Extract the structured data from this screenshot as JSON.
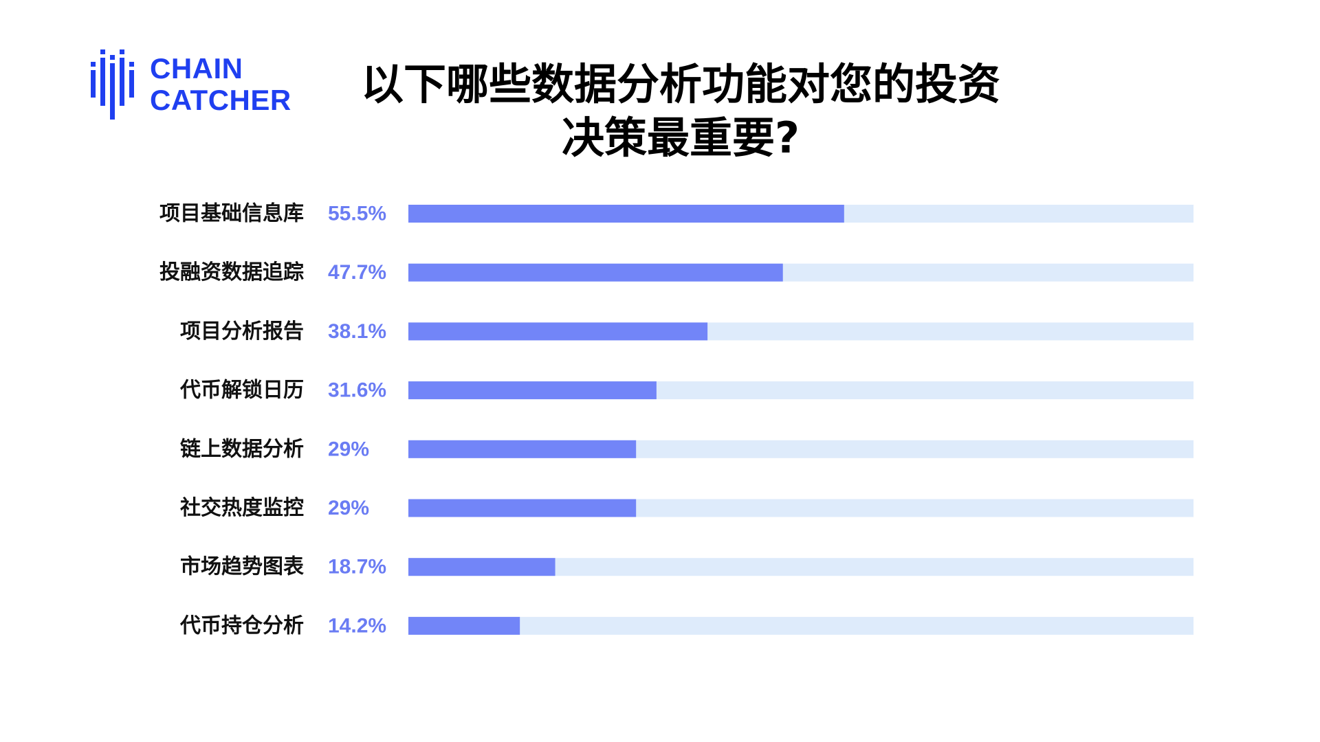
{
  "brand": {
    "line1": "CHAIN",
    "line2": "CATCHER",
    "color": "#1f3ff0"
  },
  "title_lines": [
    "以下哪些数据分析功能对您的投资",
    "决策最重要?"
  ],
  "chart_data": {
    "type": "bar",
    "orientation": "horizontal",
    "title": "以下哪些数据分析功能对您的投资决策最重要?",
    "categories": [
      "项目基础信息库",
      "投融资数据追踪",
      "项目分析报告",
      "代币解锁日历",
      "链上数据分析",
      "社交热度监控",
      "市场趋势图表",
      "代币持仓分析"
    ],
    "values": [
      55.5,
      47.7,
      38.1,
      31.6,
      29,
      29,
      18.7,
      14.2
    ],
    "value_labels": [
      "55.5%",
      "47.7%",
      "38.1%",
      "31.6%",
      "29%",
      "29%",
      "18.7%",
      "14.2%"
    ],
    "xlim": [
      0,
      100
    ],
    "bar_color": "#7285f8",
    "track_color": "#deebfb",
    "label_color": "#6a7cf3",
    "grid": false,
    "legend": "none"
  }
}
